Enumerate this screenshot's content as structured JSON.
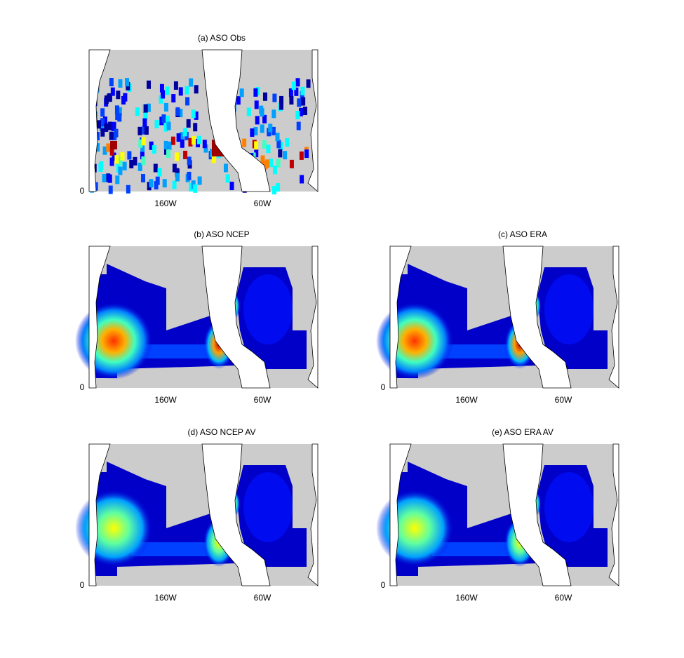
{
  "panels": [
    {
      "title": "(a) ASO Obs",
      "yticks": [
        0
      ],
      "xticks": [
        "160W",
        "60W"
      ]
    },
    {
      "title": "(b) ASO NCEP",
      "yticks": [
        0
      ],
      "xticks": [
        "160W",
        "60W"
      ]
    },
    {
      "title": "(c) ASO ERA",
      "yticks": [
        0
      ],
      "xticks": [
        "160W",
        "60W"
      ]
    },
    {
      "title": "(d) ASO NCEP AV",
      "yticks": [
        0
      ],
      "xticks": [
        "160W",
        "60W"
      ]
    },
    {
      "title": "(e) ASO ERA AV",
      "yticks": [
        0
      ],
      "xticks": [
        "160W",
        "60W"
      ]
    }
  ]
}
